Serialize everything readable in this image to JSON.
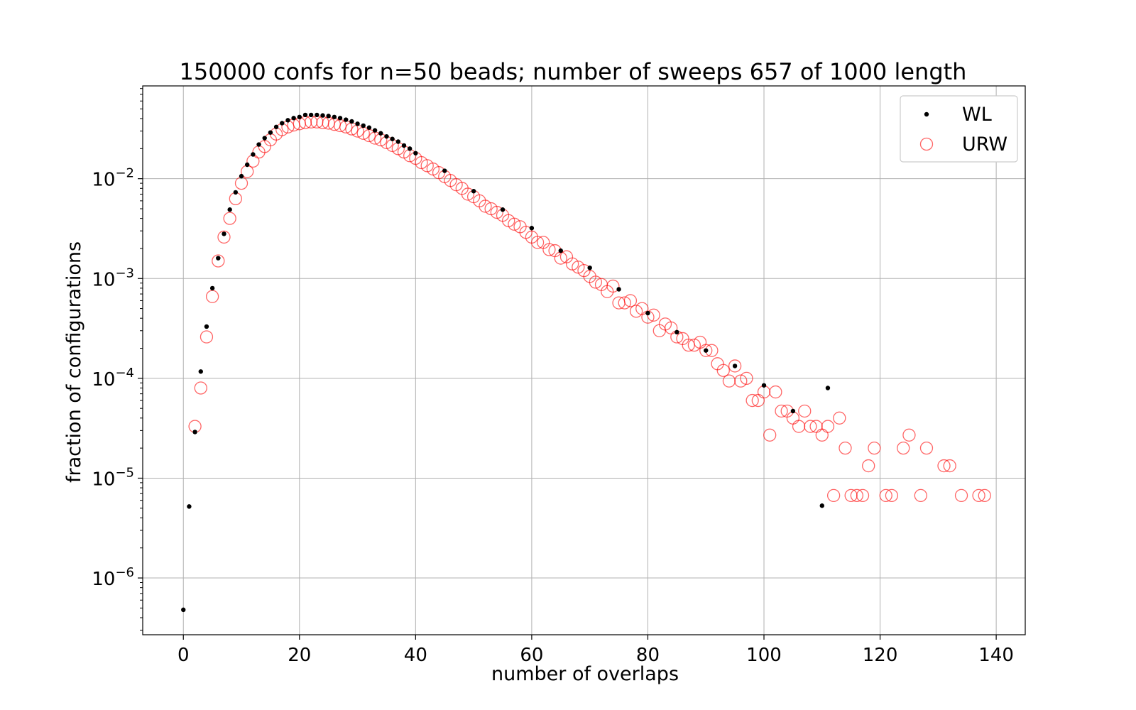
{
  "chart_data": {
    "type": "scatter",
    "title": "150000 confs for n=50 beads; number of sweeps 657 of 1000 length",
    "xlabel": "number of overlaps",
    "ylabel": "fraction of configurations",
    "xlim": [
      -7,
      145
    ],
    "ylim": [
      2.7e-07,
      0.085
    ],
    "yscale": "log",
    "grid": true,
    "legend_position": "top-right",
    "x_ticks": [
      0,
      20,
      40,
      60,
      80,
      100,
      120,
      140
    ],
    "y_ticks": [
      {
        "base": "10",
        "exp": "−6",
        "value": 1e-06
      },
      {
        "base": "10",
        "exp": "−5",
        "value": 1e-05
      },
      {
        "base": "10",
        "exp": "−4",
        "value": 0.0001
      },
      {
        "base": "10",
        "exp": "−3",
        "value": 0.001
      },
      {
        "base": "10",
        "exp": "−2",
        "value": 0.01
      }
    ],
    "series": [
      {
        "name": "WL",
        "marker": "dot",
        "color": "#000000",
        "points": [
          [
            0,
            4.8e-07
          ],
          [
            1,
            5.2e-06
          ],
          [
            2,
            2.9e-05
          ],
          [
            3,
            0.000117
          ],
          [
            4,
            0.00033
          ],
          [
            5,
            0.0008
          ],
          [
            6,
            0.0016
          ],
          [
            7,
            0.0028
          ],
          [
            8,
            0.0049
          ],
          [
            9,
            0.0073
          ],
          [
            10,
            0.0106
          ],
          [
            11,
            0.0138
          ],
          [
            12,
            0.0175
          ],
          [
            13,
            0.022
          ],
          [
            14,
            0.0255
          ],
          [
            15,
            0.029
          ],
          [
            16,
            0.033
          ],
          [
            17,
            0.036
          ],
          [
            18,
            0.0385
          ],
          [
            19,
            0.0405
          ],
          [
            20,
            0.0415
          ],
          [
            21,
            0.0435
          ],
          [
            22,
            0.0435
          ],
          [
            23,
            0.0435
          ],
          [
            24,
            0.043
          ],
          [
            25,
            0.0425
          ],
          [
            26,
            0.0415
          ],
          [
            27,
            0.0405
          ],
          [
            28,
            0.039
          ],
          [
            29,
            0.0375
          ],
          [
            30,
            0.0355
          ],
          [
            31,
            0.034
          ],
          [
            32,
            0.0325
          ],
          [
            33,
            0.0305
          ],
          [
            34,
            0.0285
          ],
          [
            35,
            0.0265
          ],
          [
            36,
            0.025
          ],
          [
            37,
            0.0235
          ],
          [
            38,
            0.0215
          ],
          [
            39,
            0.02
          ],
          [
            40,
            0.018
          ],
          [
            45,
            0.012
          ],
          [
            50,
            0.0075
          ],
          [
            55,
            0.0049
          ],
          [
            60,
            0.0032
          ],
          [
            65,
            0.0019
          ],
          [
            70,
            0.00128
          ],
          [
            75,
            0.00078
          ],
          [
            80,
            0.00045
          ],
          [
            85,
            0.00029
          ],
          [
            90,
            0.00019
          ],
          [
            95,
            0.000133
          ],
          [
            100,
            8.5e-05
          ],
          [
            105,
            4.7e-05
          ],
          [
            110,
            5.3e-06
          ],
          [
            111,
            8e-05
          ]
        ]
      },
      {
        "name": "URW",
        "marker": "open-circle",
        "color": "#ff0000",
        "points": [
          [
            2,
            3.3e-05
          ],
          [
            3,
            8e-05
          ],
          [
            4,
            0.00026
          ],
          [
            5,
            0.00066
          ],
          [
            6,
            0.0015
          ],
          [
            7,
            0.0026
          ],
          [
            8,
            0.004
          ],
          [
            9,
            0.0063
          ],
          [
            10,
            0.009
          ],
          [
            11,
            0.0118
          ],
          [
            12,
            0.015
          ],
          [
            13,
            0.0185
          ],
          [
            14,
            0.021
          ],
          [
            15,
            0.0245
          ],
          [
            16,
            0.028
          ],
          [
            17,
            0.031
          ],
          [
            18,
            0.033
          ],
          [
            19,
            0.0345
          ],
          [
            20,
            0.0355
          ],
          [
            21,
            0.0365
          ],
          [
            22,
            0.037
          ],
          [
            23,
            0.037
          ],
          [
            24,
            0.0365
          ],
          [
            25,
            0.036
          ],
          [
            26,
            0.035
          ],
          [
            27,
            0.034
          ],
          [
            28,
            0.033
          ],
          [
            29,
            0.0315
          ],
          [
            30,
            0.03
          ],
          [
            31,
            0.0285
          ],
          [
            32,
            0.027
          ],
          [
            33,
            0.0255
          ],
          [
            34,
            0.0245
          ],
          [
            35,
            0.023
          ],
          [
            36,
            0.0215
          ],
          [
            37,
            0.02
          ],
          [
            38,
            0.0185
          ],
          [
            39,
            0.017
          ],
          [
            40,
            0.016
          ],
          [
            41,
            0.0145
          ],
          [
            42,
            0.0135
          ],
          [
            43,
            0.0125
          ],
          [
            44,
            0.0115
          ],
          [
            45,
            0.0105
          ],
          [
            46,
            0.0096
          ],
          [
            47,
            0.0087
          ],
          [
            48,
            0.008
          ],
          [
            49,
            0.007
          ],
          [
            50,
            0.0066
          ],
          [
            51,
            0.006
          ],
          [
            52,
            0.0053
          ],
          [
            53,
            0.005
          ],
          [
            54,
            0.0046
          ],
          [
            55,
            0.0043
          ],
          [
            56,
            0.0038
          ],
          [
            57,
            0.0035
          ],
          [
            58,
            0.0033
          ],
          [
            59,
            0.0029
          ],
          [
            60,
            0.0026
          ],
          [
            61,
            0.0023
          ],
          [
            62,
            0.0023
          ],
          [
            63,
            0.00195
          ],
          [
            64,
            0.0019
          ],
          [
            65,
            0.0016
          ],
          [
            66,
            0.00165
          ],
          [
            67,
            0.0014
          ],
          [
            68,
            0.0013
          ],
          [
            69,
            0.0012
          ],
          [
            70,
            0.00105
          ],
          [
            71,
            0.00092
          ],
          [
            72,
            0.00087
          ],
          [
            73,
            0.00074
          ],
          [
            74,
            0.00084
          ],
          [
            75,
            0.00057
          ],
          [
            76,
            0.00057
          ],
          [
            77,
            0.0006
          ],
          [
            78,
            0.00047
          ],
          [
            79,
            0.0005
          ],
          [
            80,
            0.00041
          ],
          [
            81,
            0.00043
          ],
          [
            82,
            0.0003
          ],
          [
            83,
            0.00035
          ],
          [
            84,
            0.00032
          ],
          [
            85,
            0.00026
          ],
          [
            86,
            0.00025
          ],
          [
            87,
            0.000215
          ],
          [
            88,
            0.000215
          ],
          [
            89,
            0.00023
          ],
          [
            90,
            0.00019
          ],
          [
            91,
            0.00019
          ],
          [
            92,
            0.00014
          ],
          [
            93,
            0.00012
          ],
          [
            94,
            9.4e-05
          ],
          [
            95,
            0.000133
          ],
          [
            96,
            9.4e-05
          ],
          [
            97,
            0.0001
          ],
          [
            98,
            6e-05
          ],
          [
            99,
            6e-05
          ],
          [
            100,
            7.3e-05
          ],
          [
            101,
            2.7e-05
          ],
          [
            102,
            7.3e-05
          ],
          [
            103,
            4.7e-05
          ],
          [
            104,
            4.7e-05
          ],
          [
            105,
            4e-05
          ],
          [
            106,
            3.3e-05
          ],
          [
            107,
            4.7e-05
          ],
          [
            108,
            3.3e-05
          ],
          [
            109,
            3.3e-05
          ],
          [
            110,
            2.7e-05
          ],
          [
            111,
            3.3e-05
          ],
          [
            112,
            6.7e-06
          ],
          [
            113,
            4e-05
          ],
          [
            114,
            2e-05
          ],
          [
            115,
            6.7e-06
          ],
          [
            116,
            6.7e-06
          ],
          [
            117,
            6.7e-06
          ],
          [
            118,
            1.33e-05
          ],
          [
            119,
            2e-05
          ],
          [
            121,
            6.7e-06
          ],
          [
            122,
            6.7e-06
          ],
          [
            124,
            2e-05
          ],
          [
            125,
            2.7e-05
          ],
          [
            127,
            6.7e-06
          ],
          [
            128,
            2e-05
          ],
          [
            131,
            1.33e-05
          ],
          [
            132,
            1.33e-05
          ],
          [
            134,
            6.7e-06
          ],
          [
            137,
            6.7e-06
          ],
          [
            138,
            6.7e-06
          ]
        ]
      }
    ]
  }
}
